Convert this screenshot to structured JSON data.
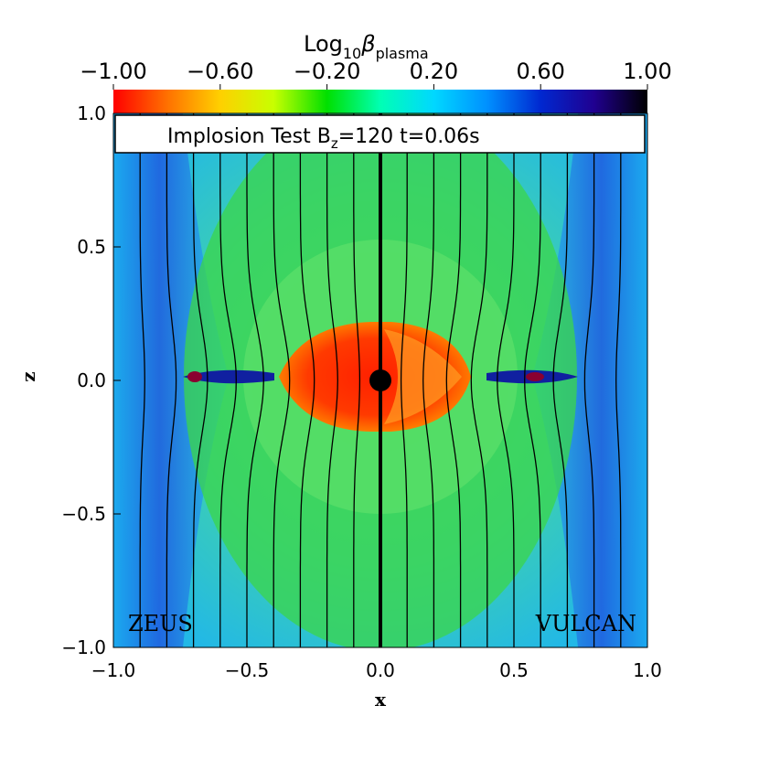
{
  "chart_data": {
    "type": "heatmap",
    "title": "Implosion Test B",
    "title_sub": "z",
    "title_rest": "=120 t=0.06s",
    "colorbar": {
      "label_main": "Log",
      "label_sub1": "10",
      "label_beta": "β",
      "label_sub2": "plasma",
      "ticks": [
        "−1.00",
        "−0.60",
        "−0.20",
        "0.20",
        "0.60",
        "1.00"
      ],
      "range": [
        -1.0,
        1.0
      ],
      "colors": [
        "#ff0000",
        "#ff7000",
        "#ffd000",
        "#c8ff00",
        "#00e000",
        "#00ffb4",
        "#00d8ff",
        "#0090ff",
        "#0028d0",
        "#200090",
        "#000000"
      ]
    },
    "xlabel": "x",
    "ylabel": "z",
    "xlim": [
      -1.0,
      1.0
    ],
    "ylim": [
      -1.0,
      1.0
    ],
    "x_ticks": [
      "−1.0",
      "−0.5",
      "0.0",
      "0.5",
      "1.0"
    ],
    "y_ticks": [
      "−1.0",
      "−0.5",
      "0.0",
      "0.5",
      "1.0"
    ],
    "left_label": "ZEUS",
    "right_label": "VULCAN",
    "field_lines_x": [
      -0.9,
      -0.8,
      -0.7,
      -0.6,
      -0.5,
      -0.4,
      -0.3,
      -0.2,
      -0.1,
      0.1,
      0.2,
      0.3,
      0.4,
      0.5,
      0.6,
      0.7,
      0.8,
      0.9
    ],
    "central_dot": {
      "x": 0.0,
      "z": 0.0
    }
  }
}
